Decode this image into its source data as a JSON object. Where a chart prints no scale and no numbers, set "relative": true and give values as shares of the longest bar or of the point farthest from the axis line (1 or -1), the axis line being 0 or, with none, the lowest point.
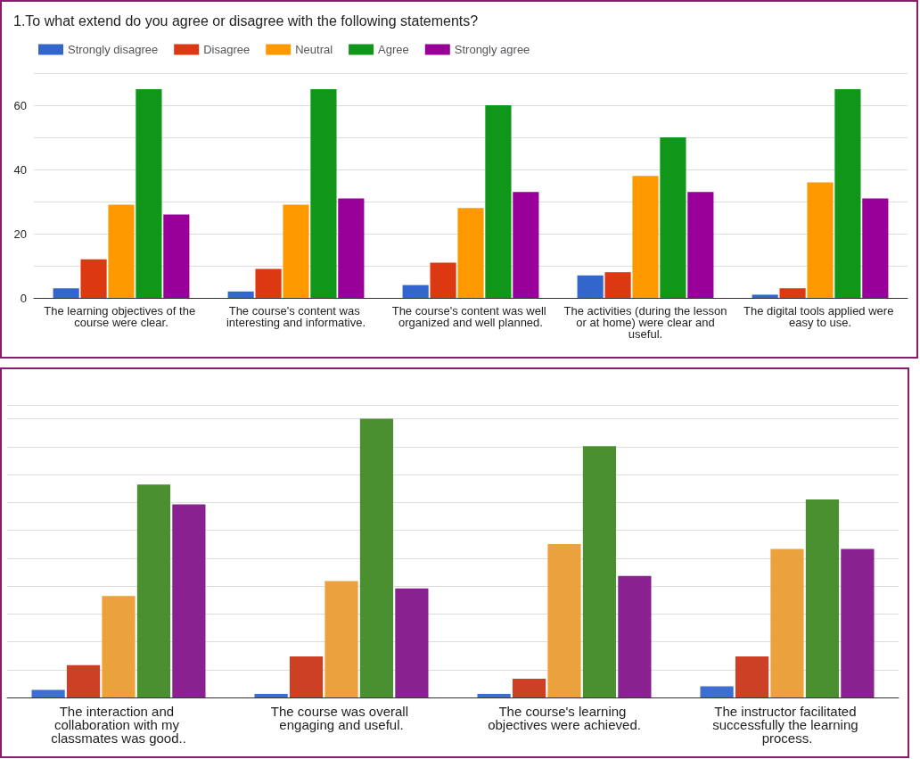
{
  "chart_data": [
    {
      "type": "bar",
      "title": "1.To what extend do you agree or disagree with the following statements?",
      "categories": [
        "The learning objectives of the course were clear.",
        "The course's content was interesting and informative.",
        "The course's content was well organized and well planned.",
        "The activities (during the lesson or at home) were clear and useful.",
        "The digital tools applied were easy to use."
      ],
      "series": [
        {
          "name": "Strongly disagree",
          "color": "#3366cc",
          "values": [
            3,
            2,
            4,
            7,
            1
          ]
        },
        {
          "name": "Disagree",
          "color": "#dc3912",
          "values": [
            12,
            9,
            11,
            8,
            3
          ]
        },
        {
          "name": "Neutral",
          "color": "#ff9900",
          "values": [
            29,
            29,
            28,
            38,
            36
          ]
        },
        {
          "name": "Agree",
          "color": "#109618",
          "values": [
            65,
            65,
            60,
            50,
            65
          ]
        },
        {
          "name": "Strongly agree",
          "color": "#990099",
          "values": [
            26,
            31,
            33,
            33,
            31
          ]
        }
      ],
      "ylim": [
        0,
        70
      ],
      "yticks": [
        0,
        {
          "value": 10,
          "label": null
        },
        20,
        {
          "value": 30,
          "label": null
        },
        40,
        {
          "value": 50,
          "label": null
        },
        60,
        {
          "value": 70,
          "label": null
        }
      ],
      "grid": "y",
      "legend": "top left"
    },
    {
      "type": "bar",
      "relative": true,
      "categories": [
        "The interaction and collaboration with my classmates was good..",
        "The course was overall engaging and useful.",
        "The course's learning objectives were achieved.",
        "The instructor facilitated successfully the learning process."
      ],
      "series": [
        {
          "color": "#3d6fd0",
          "values": [
            0.027,
            0.013,
            0.013,
            0.04
          ]
        },
        {
          "color": "#cc4125",
          "values": [
            0.116,
            0.147,
            0.067,
            0.147
          ]
        },
        {
          "color": "#eba23c",
          "values": [
            0.364,
            0.418,
            0.551,
            0.533
          ]
        },
        {
          "color": "#4a9030",
          "values": [
            0.764,
            1,
            0.902,
            0.711
          ]
        },
        {
          "color": "#8a2190",
          "values": [
            0.693,
            0.391,
            0.436,
            0.533
          ]
        }
      ],
      "grid": "y",
      "legend": false,
      "tick_labels": "x"
    }
  ]
}
